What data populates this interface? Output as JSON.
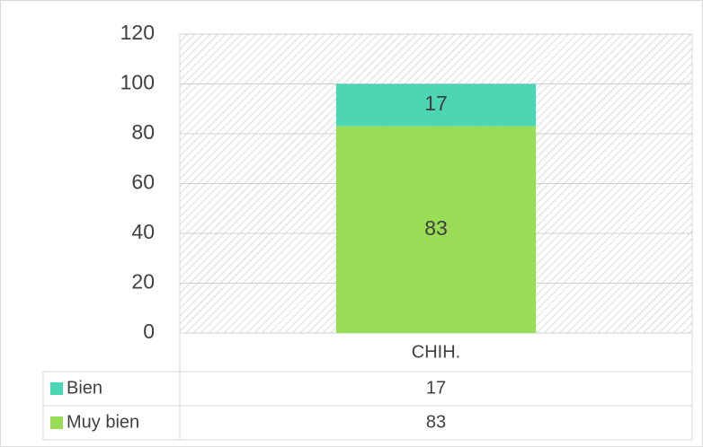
{
  "chart_data": {
    "type": "bar",
    "stacked": true,
    "categories": [
      "CHIH."
    ],
    "series": [
      {
        "name": "Bien",
        "color": "#4dd6b4",
        "values": [
          17
        ]
      },
      {
        "name": "Muy bien",
        "color": "#99dc55",
        "values": [
          83
        ]
      }
    ],
    "ylim": [
      0,
      120
    ],
    "yticks": [
      0,
      20,
      40,
      60,
      80,
      100,
      120
    ],
    "grid": true,
    "data_table": true
  }
}
